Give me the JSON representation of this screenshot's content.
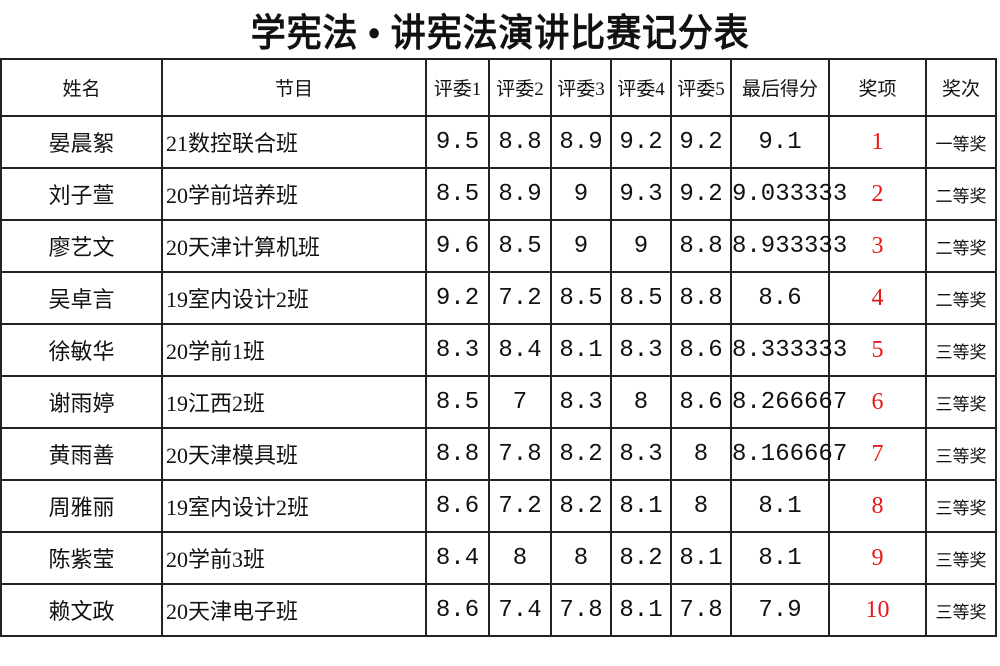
{
  "title": "学宪法 • 讲宪法演讲比赛记分表",
  "colors": {
    "rank": "#e81818",
    "border": "#222222"
  },
  "headers": [
    "姓名",
    "节目",
    "评委1",
    "评委2",
    "评委3",
    "评委4",
    "评委5",
    "最后得分",
    "奖项",
    "奖次"
  ],
  "rows": [
    [
      "晏晨絮",
      "21数控联合班",
      "9.5",
      "8.8",
      "8.9",
      "9.2",
      "9.2",
      "9.1",
      "1",
      "一等奖"
    ],
    [
      "刘子萱",
      "20学前培养班",
      "8.5",
      "8.9",
      "9",
      "9.3",
      "9.2",
      "9.033333",
      "2",
      "二等奖"
    ],
    [
      "廖艺文",
      "20天津计算机班",
      "9.6",
      "8.5",
      "9",
      "9",
      "8.8",
      "8.933333",
      "3",
      "二等奖"
    ],
    [
      "吴卓言",
      "19室内设计2班",
      "9.2",
      "7.2",
      "8.5",
      "8.5",
      "8.8",
      "8.6",
      "4",
      "二等奖"
    ],
    [
      "徐敏华",
      "20学前1班",
      "8.3",
      "8.4",
      "8.1",
      "8.3",
      "8.6",
      "8.333333",
      "5",
      "三等奖"
    ],
    [
      "谢雨婷",
      "19江西2班",
      "8.5",
      "7",
      "8.3",
      "8",
      "8.6",
      "8.266667",
      "6",
      "三等奖"
    ],
    [
      "黄雨善",
      "20天津模具班",
      "8.8",
      "7.8",
      "8.2",
      "8.3",
      "8",
      "8.166667",
      "7",
      "三等奖"
    ],
    [
      "周雅丽",
      "19室内设计2班",
      "8.6",
      "7.2",
      "8.2",
      "8.1",
      "8",
      "8.1",
      "8",
      "三等奖"
    ],
    [
      "陈紫莹",
      "20学前3班",
      "8.4",
      "8",
      "8",
      "8.2",
      "8.1",
      "8.1",
      "9",
      "三等奖"
    ],
    [
      "赖文政",
      "20天津电子班",
      "8.6",
      "7.4",
      "7.8",
      "8.1",
      "7.8",
      "7.9",
      "10",
      "三等奖"
    ]
  ]
}
